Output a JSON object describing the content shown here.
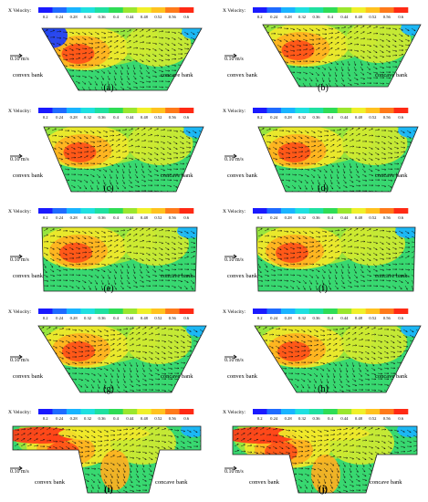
{
  "colorbar": {
    "label": "X Velocity:",
    "ticks": [
      "0.2",
      "0.24",
      "0.28",
      "0.32",
      "0.36",
      "0.4",
      "0.44",
      "0.48",
      "0.52",
      "0.56",
      "0.6"
    ],
    "colors": [
      "#1a1aff",
      "#1f6bff",
      "#19b4ff",
      "#1fe0e0",
      "#1fe0a0",
      "#2fdc55",
      "#9be62e",
      "#f0f02a",
      "#ffc21f",
      "#ff7a1a",
      "#ff2a14"
    ]
  },
  "scale": "0.10 m/s",
  "banks": {
    "left": "convex bank",
    "right": "concave bank"
  },
  "panels": [
    {
      "caption": "(a)",
      "bold": false
    },
    {
      "caption": "(b)",
      "bold": false
    },
    {
      "caption": "(c)",
      "bold": false
    },
    {
      "caption": "(d)",
      "bold": false
    },
    {
      "caption": "(e)",
      "bold": false
    },
    {
      "caption": "(f)",
      "bold": false
    },
    {
      "caption": "(g)",
      "bold": false
    },
    {
      "caption": "(h)",
      "bold": false
    },
    {
      "caption": "(i)",
      "bold": true
    },
    {
      "caption": "(j)",
      "bold": true
    }
  ]
}
